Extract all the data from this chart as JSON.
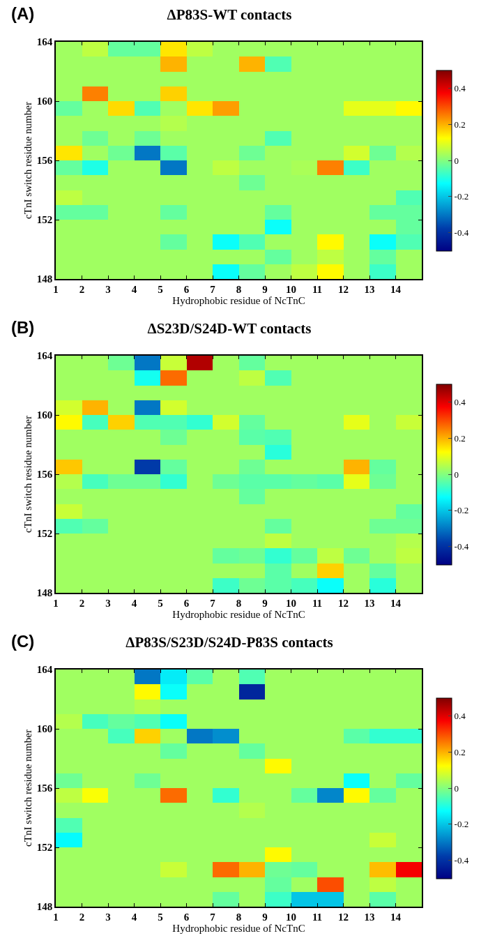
{
  "chart_data": [
    {
      "type": "heatmap",
      "title": "ΔP83S-WT contacts",
      "xlabel": "Hydrophobic residue of NcTnC",
      "ylabel": "cTnI switch residue number",
      "annotations": [
        "(A)"
      ],
      "x": [
        1.5,
        2.5,
        3.5,
        4.5,
        5.5,
        6.5,
        7.5,
        8.5,
        9.5,
        10.5,
        11.5,
        12.5,
        13.5,
        14.5
      ],
      "y": [
        163.5,
        162.5,
        161.5,
        160.5,
        159.5,
        158.5,
        157.5,
        156.5,
        155.5,
        154.5,
        153.5,
        152.5,
        151.5,
        150.5,
        149.5,
        148.5
      ],
      "xlim": [
        1,
        15
      ],
      "xticks": [
        1,
        2,
        3,
        4,
        5,
        6,
        7,
        8,
        9,
        10,
        11,
        12,
        13,
        14
      ],
      "ylim": [
        148,
        164
      ],
      "yticks": [
        148,
        152,
        156,
        160,
        164
      ],
      "clim": [
        -0.5,
        0.5
      ],
      "cticks": [
        -0.4,
        -0.2,
        0,
        0.2,
        0.4
      ],
      "cells": [
        [
          0.03,
          0.06,
          -0.03,
          -0.03,
          0.15,
          0.06,
          0.03,
          0.03,
          0.03,
          0.03,
          0.03,
          0.03,
          0.03,
          0.03
        ],
        [
          0.03,
          0.03,
          0.03,
          0.03,
          0.2,
          0.03,
          0.03,
          0.2,
          -0.05,
          0.03,
          0.03,
          0.03,
          0.03,
          0.03
        ],
        [
          0.03,
          0.03,
          0.03,
          0.03,
          0.03,
          0.03,
          0.03,
          0.03,
          0.03,
          0.03,
          0.03,
          0.03,
          0.03,
          0.03
        ],
        [
          0.03,
          0.25,
          0.03,
          0.03,
          0.17,
          0.03,
          0.03,
          0.03,
          0.03,
          0.03,
          0.03,
          0.03,
          0.03,
          0.03
        ],
        [
          -0.03,
          0.03,
          0.16,
          -0.05,
          0.03,
          0.15,
          0.22,
          0.03,
          0.03,
          0.03,
          0.03,
          0.1,
          0.1,
          0.13
        ],
        [
          0.03,
          0.03,
          0.03,
          0.03,
          0.05,
          0.03,
          0.03,
          0.03,
          0.03,
          0.03,
          0.03,
          0.03,
          0.03,
          0.03
        ],
        [
          0.03,
          -0.02,
          0.03,
          -0.02,
          0.03,
          0.03,
          0.03,
          0.03,
          -0.05,
          0.03,
          0.03,
          0.03,
          0.03,
          0.03
        ],
        [
          0.15,
          0.03,
          -0.02,
          -0.3,
          -0.04,
          0.03,
          0.03,
          -0.02,
          0.03,
          0.03,
          0.03,
          0.08,
          -0.02,
          0.05
        ],
        [
          -0.03,
          -0.1,
          0.03,
          0.03,
          -0.3,
          0.03,
          0.06,
          0.03,
          0.03,
          0.04,
          0.25,
          -0.07,
          0.03,
          0.03
        ],
        [
          0.03,
          0.03,
          0.03,
          0.03,
          0.03,
          0.03,
          0.03,
          -0.02,
          0.03,
          0.03,
          0.03,
          0.03,
          0.03,
          0.03
        ],
        [
          0.06,
          0.03,
          0.03,
          0.03,
          0.03,
          0.03,
          0.03,
          0.03,
          0.03,
          0.03,
          0.03,
          0.03,
          0.03,
          -0.05
        ],
        [
          -0.03,
          -0.03,
          0.03,
          0.03,
          -0.03,
          0.03,
          0.03,
          0.03,
          -0.03,
          0.03,
          0.03,
          0.03,
          -0.03,
          -0.03
        ],
        [
          0.03,
          0.03,
          0.03,
          0.03,
          0.03,
          0.03,
          0.03,
          0.03,
          -0.12,
          0.03,
          0.03,
          0.03,
          0.03,
          -0.03
        ],
        [
          0.03,
          0.03,
          0.03,
          0.03,
          -0.03,
          0.03,
          -0.12,
          -0.05,
          0.03,
          0.03,
          0.13,
          0.03,
          -0.12,
          -0.05
        ],
        [
          0.03,
          0.03,
          0.03,
          0.03,
          0.03,
          0.03,
          0.03,
          0.03,
          -0.03,
          0.03,
          0.06,
          0.03,
          -0.03,
          0.03
        ],
        [
          0.03,
          0.03,
          0.03,
          0.03,
          0.03,
          0.03,
          -0.12,
          -0.03,
          0.03,
          0.06,
          0.13,
          0.03,
          -0.07,
          0.03
        ]
      ]
    },
    {
      "type": "heatmap",
      "title": "ΔS23D/S24D-WT contacts",
      "xlabel": "Hydrophobic residue of NcTnC",
      "ylabel": "cTnI switch residue number",
      "annotations": [
        "(B)"
      ],
      "x": [
        1.5,
        2.5,
        3.5,
        4.5,
        5.5,
        6.5,
        7.5,
        8.5,
        9.5,
        10.5,
        11.5,
        12.5,
        13.5,
        14.5
      ],
      "y": [
        163.5,
        162.5,
        161.5,
        160.5,
        159.5,
        158.5,
        157.5,
        156.5,
        155.5,
        154.5,
        153.5,
        152.5,
        151.5,
        150.5,
        149.5,
        148.5
      ],
      "xlim": [
        1,
        15
      ],
      "xticks": [
        1,
        2,
        3,
        4,
        5,
        6,
        7,
        8,
        9,
        10,
        11,
        12,
        13,
        14
      ],
      "ylim": [
        148,
        164
      ],
      "yticks": [
        148,
        152,
        156,
        160,
        164
      ],
      "clim": [
        -0.5,
        0.5
      ],
      "cticks": [
        -0.4,
        -0.2,
        0,
        0.2,
        0.4
      ],
      "cells": [
        [
          0.03,
          0.03,
          -0.02,
          -0.3,
          0.07,
          0.45,
          0.03,
          -0.03,
          0.03,
          0.03,
          0.03,
          0.03,
          0.03,
          0.03
        ],
        [
          0.03,
          0.03,
          0.03,
          -0.11,
          0.27,
          0.03,
          0.03,
          0.06,
          -0.05,
          0.03,
          0.03,
          0.03,
          0.03,
          0.03
        ],
        [
          0.03,
          0.03,
          0.03,
          0.03,
          0.03,
          0.03,
          0.03,
          0.03,
          0.03,
          0.03,
          0.03,
          0.03,
          0.03,
          0.03
        ],
        [
          0.08,
          0.2,
          0.03,
          -0.3,
          0.08,
          0.03,
          0.03,
          0.03,
          0.03,
          0.03,
          0.03,
          0.03,
          0.03,
          0.03
        ],
        [
          0.13,
          -0.06,
          0.17,
          -0.05,
          -0.05,
          -0.08,
          0.08,
          -0.03,
          0.03,
          0.03,
          0.03,
          0.1,
          0.03,
          0.07
        ],
        [
          0.03,
          0.03,
          0.03,
          0.03,
          -0.02,
          0.03,
          0.03,
          -0.04,
          -0.05,
          0.03,
          0.03,
          0.03,
          0.03,
          0.03
        ],
        [
          0.03,
          0.03,
          0.03,
          0.03,
          0.03,
          0.03,
          0.03,
          0.03,
          -0.09,
          0.03,
          0.03,
          0.03,
          0.03,
          0.03
        ],
        [
          0.18,
          0.03,
          0.03,
          -0.38,
          -0.03,
          0.03,
          0.03,
          -0.02,
          0.03,
          0.03,
          0.03,
          0.2,
          -0.03,
          0.03
        ],
        [
          0.05,
          -0.06,
          -0.02,
          -0.02,
          -0.08,
          0.03,
          -0.02,
          -0.04,
          -0.04,
          -0.03,
          -0.04,
          0.1,
          -0.02,
          0.03
        ],
        [
          0.03,
          0.03,
          0.03,
          0.03,
          0.03,
          0.03,
          0.03,
          -0.03,
          0.03,
          0.03,
          0.03,
          0.03,
          0.03,
          0.03
        ],
        [
          0.07,
          0.03,
          0.03,
          0.03,
          0.03,
          0.03,
          0.03,
          0.03,
          0.03,
          0.03,
          0.03,
          0.03,
          0.03,
          -0.03
        ],
        [
          -0.05,
          -0.03,
          0.03,
          0.03,
          0.03,
          0.03,
          0.03,
          0.03,
          -0.03,
          0.03,
          0.03,
          0.03,
          -0.02,
          -0.02
        ],
        [
          0.03,
          0.03,
          0.03,
          0.03,
          0.03,
          0.03,
          0.03,
          0.03,
          0.06,
          0.03,
          0.03,
          0.03,
          0.03,
          0.05
        ],
        [
          0.03,
          0.03,
          0.03,
          0.03,
          0.03,
          0.03,
          -0.03,
          -0.02,
          -0.08,
          -0.03,
          0.06,
          -0.02,
          0.03,
          0.06
        ],
        [
          0.03,
          0.03,
          0.03,
          0.03,
          0.03,
          0.03,
          0.03,
          0.03,
          -0.04,
          0.03,
          0.17,
          0.03,
          -0.03,
          0.03
        ],
        [
          0.03,
          0.03,
          0.03,
          0.03,
          0.03,
          0.03,
          -0.07,
          -0.02,
          -0.04,
          -0.06,
          -0.12,
          0.03,
          -0.09,
          0.03
        ]
      ]
    },
    {
      "type": "heatmap",
      "title": "ΔP83S/S23D/S24D-P83S contacts",
      "xlabel": "Hydrophobic residue of NcTnC",
      "ylabel": "cTnI switch residue number",
      "annotations": [
        "(C)"
      ],
      "x": [
        1.5,
        2.5,
        3.5,
        4.5,
        5.5,
        6.5,
        7.5,
        8.5,
        9.5,
        10.5,
        11.5,
        12.5,
        13.5,
        14.5
      ],
      "y": [
        163.5,
        162.5,
        161.5,
        160.5,
        159.5,
        158.5,
        157.5,
        156.5,
        155.5,
        154.5,
        153.5,
        152.5,
        151.5,
        150.5,
        149.5,
        148.5
      ],
      "xlim": [
        1,
        15
      ],
      "xticks": [
        1,
        2,
        3,
        4,
        5,
        6,
        7,
        8,
        9,
        10,
        11,
        12,
        13,
        14
      ],
      "ylim": [
        148,
        164
      ],
      "yticks": [
        148,
        152,
        156,
        160,
        164
      ],
      "clim": [
        -0.5,
        0.5
      ],
      "cticks": [
        -0.4,
        -0.2,
        0,
        0.2,
        0.4
      ],
      "cells": [
        [
          0.03,
          0.03,
          0.03,
          -0.3,
          -0.15,
          -0.04,
          0.03,
          -0.05,
          0.03,
          0.03,
          0.03,
          0.03,
          0.03,
          0.03
        ],
        [
          0.03,
          0.03,
          0.03,
          0.13,
          -0.12,
          0.03,
          0.03,
          -0.42,
          0.03,
          0.03,
          0.03,
          0.03,
          0.03,
          0.03
        ],
        [
          0.03,
          0.03,
          0.03,
          0.05,
          0.03,
          0.03,
          0.03,
          0.03,
          0.03,
          0.03,
          0.03,
          0.03,
          0.03,
          0.03
        ],
        [
          0.05,
          -0.06,
          -0.03,
          -0.05,
          -0.12,
          0.03,
          0.03,
          0.03,
          0.03,
          0.03,
          0.03,
          0.03,
          0.03,
          0.03
        ],
        [
          0.03,
          0.03,
          -0.06,
          0.17,
          0.03,
          -0.3,
          -0.27,
          0.03,
          0.03,
          0.03,
          0.03,
          -0.04,
          -0.08,
          -0.08
        ],
        [
          0.03,
          0.03,
          0.03,
          0.03,
          -0.03,
          0.03,
          0.03,
          -0.03,
          0.03,
          0.03,
          0.03,
          0.03,
          0.03,
          0.03
        ],
        [
          0.03,
          0.03,
          0.03,
          0.03,
          0.03,
          0.03,
          0.03,
          0.03,
          0.13,
          0.03,
          0.03,
          0.03,
          0.03,
          0.03
        ],
        [
          -0.02,
          0.03,
          0.03,
          -0.02,
          0.03,
          0.03,
          0.03,
          0.03,
          0.03,
          0.03,
          0.03,
          -0.12,
          0.03,
          -0.03
        ],
        [
          0.06,
          0.12,
          0.03,
          0.03,
          0.27,
          0.03,
          -0.08,
          0.03,
          0.03,
          -0.03,
          -0.28,
          0.13,
          -0.03,
          0.03
        ],
        [
          0.03,
          0.03,
          0.03,
          0.03,
          0.03,
          0.03,
          0.03,
          0.05,
          0.03,
          0.03,
          0.03,
          0.03,
          0.03,
          0.03
        ],
        [
          -0.05,
          0.03,
          0.03,
          0.03,
          0.03,
          0.03,
          0.03,
          0.03,
          0.03,
          0.03,
          0.03,
          0.03,
          0.03,
          0.03
        ],
        [
          -0.13,
          0.03,
          0.03,
          0.03,
          0.03,
          0.03,
          0.03,
          0.03,
          0.03,
          0.03,
          0.03,
          0.03,
          0.07,
          0.03
        ],
        [
          0.03,
          0.03,
          0.03,
          0.03,
          0.03,
          0.03,
          0.03,
          0.03,
          0.13,
          0.03,
          0.03,
          0.03,
          0.03,
          0.03
        ],
        [
          0.03,
          0.03,
          0.03,
          0.03,
          0.07,
          0.03,
          0.27,
          0.2,
          -0.02,
          -0.03,
          0.03,
          0.03,
          0.19,
          0.38
        ],
        [
          0.03,
          0.03,
          0.03,
          0.03,
          0.03,
          0.03,
          0.03,
          0.03,
          -0.03,
          0.03,
          0.3,
          0.03,
          0.06,
          0.03
        ],
        [
          0.03,
          0.03,
          0.03,
          0.03,
          0.03,
          0.03,
          -0.03,
          0.03,
          -0.07,
          -0.2,
          -0.2,
          0.03,
          -0.04,
          0.03
        ]
      ]
    }
  ]
}
